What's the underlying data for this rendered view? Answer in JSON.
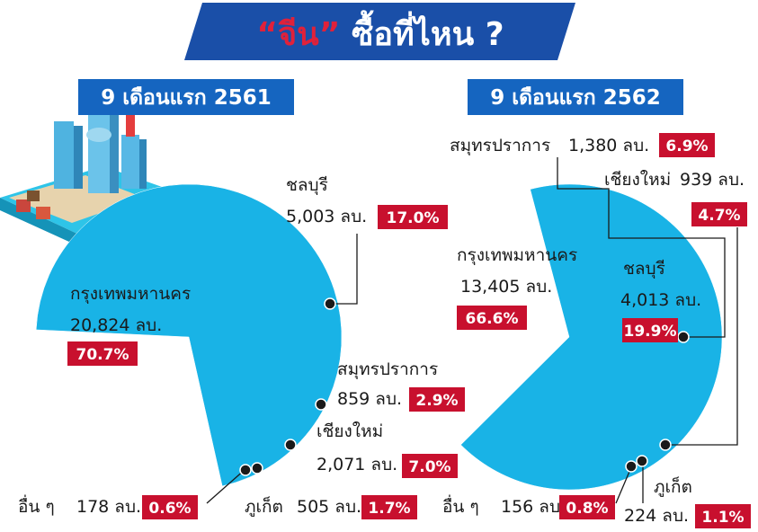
{
  "title": {
    "quote_word": "“จีน”",
    "rest": " ซื้อที่ไหน ?"
  },
  "colors": {
    "bangkok": "#19b3e6",
    "chonburi": "#8dc63f",
    "samutprakan": "#fdc113",
    "chiangmai": "#f26522",
    "phuket": "#b94a1f",
    "others": "#4d4d4d",
    "badge": "#c8102e",
    "header": "#1565c0",
    "title_bg": "#1a4fa8"
  },
  "chart_data": [
    {
      "type": "pie",
      "title": "9 เดือนแรก 2561",
      "unit": "ลบ.",
      "slices": [
        {
          "name": "กรุงเทพมหานคร",
          "value": 20824,
          "value_text": "20,824 ลบ.",
          "pct": "70.7%",
          "color_key": "bangkok"
        },
        {
          "name": "ชลบุรี",
          "value": 5003,
          "value_text": "5,003 ลบ.",
          "pct": "17.0%",
          "color_key": "chonburi"
        },
        {
          "name": "สมุทรปราการ",
          "value": 859,
          "value_text": "859 ลบ.",
          "pct": "2.9%",
          "color_key": "samutprakan"
        },
        {
          "name": "เชียงใหม่",
          "value": 2071,
          "value_text": "2,071 ลบ.",
          "pct": "7.0%",
          "color_key": "chiangmai"
        },
        {
          "name": "ภูเก็ต",
          "value": 505,
          "value_text": "505 ลบ.",
          "pct": "1.7%",
          "color_key": "phuket"
        },
        {
          "name": "อื่น ๆ",
          "value": 178,
          "value_text": "178 ลบ.",
          "pct": "0.6%",
          "color_key": "others"
        }
      ]
    },
    {
      "type": "pie",
      "title": "9 เดือนแรก 2562",
      "unit": "ลบ.",
      "slices": [
        {
          "name": "กรุงเทพมหานคร",
          "value": 13405,
          "value_text": "13,405 ลบ.",
          "pct": "66.6%",
          "color_key": "bangkok"
        },
        {
          "name": "ชลบุรี",
          "value": 4013,
          "value_text": "4,013 ลบ.",
          "pct": "19.9%",
          "color_key": "chonburi"
        },
        {
          "name": "สมุทรปราการ",
          "value": 1380,
          "value_text": "1,380 ลบ.",
          "pct": "6.9%",
          "color_key": "samutprakan"
        },
        {
          "name": "เชียงใหม่",
          "value": 939,
          "value_text": "939 ลบ.",
          "pct": "4.7%",
          "color_key": "chiangmai"
        },
        {
          "name": "ภูเก็ต",
          "value": 224,
          "value_text": "224 ลบ.",
          "pct": "1.1%",
          "color_key": "phuket"
        },
        {
          "name": "อื่น ๆ",
          "value": 156,
          "value_text": "156 ลบ.",
          "pct": "0.8%",
          "color_key": "others"
        }
      ]
    }
  ]
}
